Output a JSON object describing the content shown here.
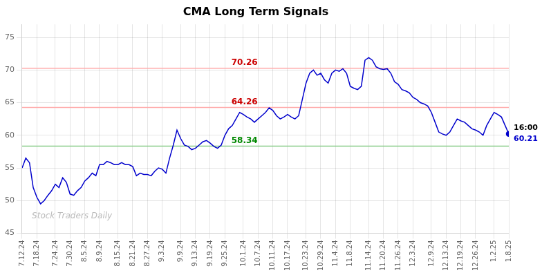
{
  "chart_data": {
    "type": "line",
    "title": "CMA Long Term Signals",
    "categories": [
      "7.12.24",
      null,
      null,
      null,
      "7.18.24",
      null,
      null,
      null,
      null,
      "7.24.24",
      null,
      null,
      null,
      "7.30.24",
      null,
      null,
      null,
      "8.5.24",
      null,
      null,
      null,
      "8.9.24",
      null,
      null,
      null,
      null,
      "8.15.24",
      null,
      null,
      null,
      "8.21.24",
      null,
      null,
      null,
      "8.27.24",
      null,
      null,
      null,
      "9.3.24",
      null,
      null,
      null,
      null,
      "9.9.24",
      null,
      null,
      null,
      "9.13.24",
      null,
      null,
      null,
      "9.19.24",
      null,
      null,
      null,
      "9.25.24",
      null,
      null,
      null,
      null,
      "10.1.24",
      null,
      null,
      null,
      "10.7.24",
      null,
      null,
      null,
      "10.11.24",
      null,
      null,
      null,
      "10.17.24",
      null,
      null,
      null,
      null,
      "10.23.24",
      null,
      null,
      null,
      "10.29.24",
      null,
      null,
      null,
      "11.4.24",
      null,
      null,
      null,
      "11.8.24",
      null,
      null,
      null,
      null,
      "11.14.24",
      null,
      null,
      null,
      "11.20.24",
      null,
      null,
      null,
      "11.26.24",
      null,
      null,
      null,
      "12.3.24",
      null,
      null,
      null,
      null,
      "12.9.24",
      null,
      null,
      null,
      "12.13.24",
      null,
      null,
      null,
      "12.19.24",
      null,
      null,
      null,
      "12.26.24",
      null,
      null,
      null,
      null,
      "1.2.25",
      null,
      null,
      null,
      "1.8.25"
    ],
    "values": [
      55.0,
      56.5,
      55.8,
      52.0,
      50.5,
      49.5,
      50.0,
      50.8,
      51.5,
      52.5,
      52.0,
      53.5,
      52.8,
      51.0,
      50.8,
      51.5,
      52.0,
      53.0,
      53.5,
      54.2,
      53.8,
      55.5,
      55.5,
      56.0,
      55.8,
      55.5,
      55.5,
      55.8,
      55.5,
      55.5,
      55.2,
      53.8,
      54.2,
      54.0,
      54.0,
      53.8,
      54.5,
      55.0,
      54.8,
      54.2,
      56.5,
      58.5,
      60.8,
      59.5,
      58.5,
      58.3,
      57.8,
      58.0,
      58.5,
      59.0,
      59.2,
      58.8,
      58.3,
      58.0,
      58.5,
      60.0,
      61.0,
      61.5,
      62.5,
      63.5,
      63.2,
      62.8,
      62.5,
      62.0,
      62.5,
      63.0,
      63.5,
      64.2,
      63.8,
      63.0,
      62.5,
      62.8,
      63.2,
      62.8,
      62.5,
      63.0,
      65.5,
      68.0,
      69.5,
      70.0,
      69.2,
      69.5,
      68.5,
      68.0,
      69.5,
      70.0,
      69.8,
      70.2,
      69.5,
      67.5,
      67.2,
      67.0,
      67.5,
      71.5,
      71.9,
      71.5,
      70.5,
      70.2,
      70.1,
      70.2,
      69.5,
      68.2,
      67.8,
      67.0,
      66.8,
      66.5,
      65.8,
      65.5,
      65.0,
      64.8,
      64.5,
      63.5,
      62.0,
      60.5,
      60.2,
      60.0,
      60.5,
      61.5,
      62.5,
      62.2,
      62.0,
      61.5,
      61.0,
      60.8,
      60.5,
      60.0,
      61.5,
      62.5,
      63.5,
      63.2,
      62.8,
      61.5,
      60.21
    ],
    "color": "#0000cc",
    "ylim": [
      45,
      77
    ],
    "yticks": [
      45,
      50,
      55,
      60,
      65,
      70,
      75
    ],
    "grid": true,
    "hlines": [
      {
        "value": 70.26,
        "color": "#ffaaaa",
        "label": "70.26",
        "label_color": "#cc0000"
      },
      {
        "value": 64.26,
        "color": "#ffaaaa",
        "label": "64.26",
        "label_color": "#cc0000"
      },
      {
        "value": 58.34,
        "color": "#88cc88",
        "label": "58.34",
        "label_color": "#008800"
      }
    ],
    "last_point": {
      "label": "16:00",
      "value": 60.21
    },
    "watermark": "Stock Traders Daily",
    "watermark_color": "#bbbbbb"
  }
}
